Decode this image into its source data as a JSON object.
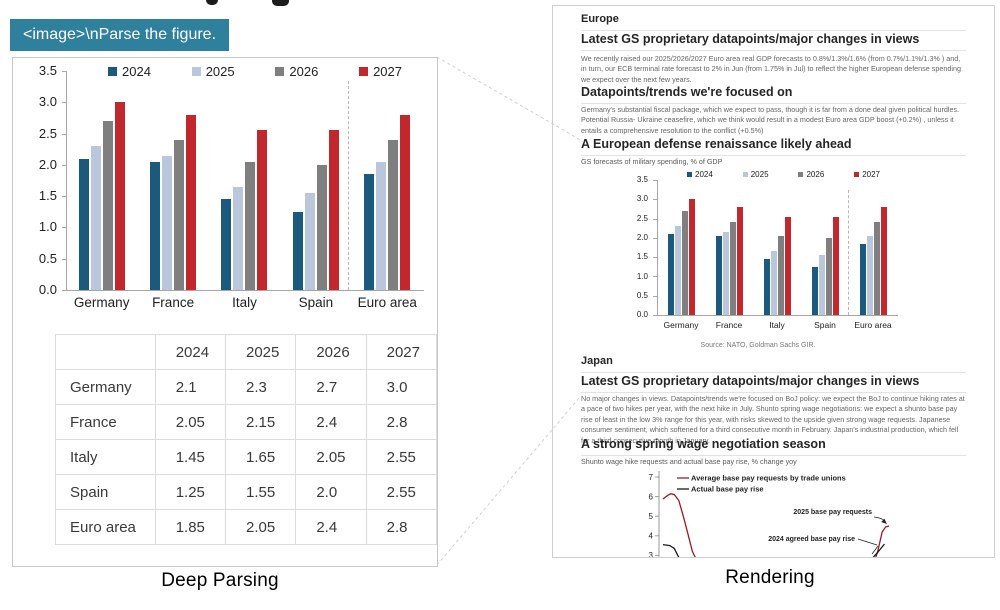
{
  "prompt_chip": {
    "text": "<image>\\nParse the figure."
  },
  "captions": {
    "left": "Deep Parsing",
    "right": "Rendering"
  },
  "table": {
    "headers": [
      "",
      "2024",
      "2025",
      "2026",
      "2027"
    ],
    "rows": [
      {
        "label": "Germany",
        "values": [
          "2.1",
          "2.3",
          "2.7",
          "3.0"
        ]
      },
      {
        "label": "France",
        "values": [
          "2.05",
          "2.15",
          "2.4",
          "2.8"
        ]
      },
      {
        "label": "Italy",
        "values": [
          "1.45",
          "1.65",
          "2.05",
          "2.55"
        ]
      },
      {
        "label": "Spain",
        "values": [
          "1.25",
          "1.55",
          "2.0",
          "2.55"
        ]
      },
      {
        "label": "Euro area",
        "values": [
          "1.85",
          "2.05",
          "2.4",
          "2.8"
        ]
      }
    ]
  },
  "panel": {
    "europe": {
      "section_title": "Europe",
      "h1": "Latest GS proprietary datapoints/major changes in views",
      "p1": "We recently raised our 2025/2026/2027 Euro area real GDP forecasts to 0.8%/1.3%/1.6% (from 0.7%/1.1%/1.3% ) and, in turn, our ECB terminal rate forecast to 2% in Jun (from 1.75% in Jul) to reflect the higher European defense spending we expect over the next few years.",
      "h2": "Datapoints/trends we're focused on",
      "p2": "Germany's substantial fiscal package, which we expect to pass, though it is far from a done deal given political hurdles. Potential Russia- Ukraine ceasefire, which we think would result in a modest Euro area GDP boost (+0.2%) , unless it entails a comprehensive resolution to the conflict (+0.5%)"
    },
    "japan": {
      "section_title": "Japan",
      "h1": "Latest GS proprietary datapoints/major changes in views",
      "p1": "No major changes in views. Datapoints/trends we're focused on BoJ policy: we expect the BoJ to continue hiking rates at a pace of two hikes per year, with the next hike in July. Shunto spring wage negotiations: we expect a shunto base pay rise of least in the low 3% range for this year, with risks skewed to the upside given strong wage requests. Japanese consumer sentiment, which softened for a third consecutive month in February. Japan's industrial production, which fell for a third consecutive month in January."
    }
  },
  "chart_data": [
    {
      "id": "gs-military-spending",
      "type": "bar",
      "title": "A European defense renaissance likely ahead",
      "subtitle": "GS forecasts of military spending, % of GDP",
      "source": "Source: NATO, Goldman Sachs GIR.",
      "categories": [
        "Germany",
        "France",
        "Italy",
        "Spain",
        "Euro area"
      ],
      "series": [
        {
          "name": "2024",
          "color": "#1b5a7d",
          "values": [
            2.1,
            2.05,
            1.45,
            1.25,
            1.85
          ]
        },
        {
          "name": "2025",
          "color": "#b9c6dc",
          "values": [
            2.3,
            2.15,
            1.65,
            1.55,
            2.05
          ]
        },
        {
          "name": "2026",
          "color": "#7f7f7f",
          "values": [
            2.7,
            2.4,
            2.05,
            2.0,
            2.4
          ]
        },
        {
          "name": "2027",
          "color": "#c1272d",
          "values": [
            3.0,
            2.8,
            2.55,
            2.55,
            2.8
          ]
        }
      ],
      "ylim": [
        0,
        3.5
      ],
      "ytick_labels": [
        "0.0",
        "0.5",
        "1.0",
        "1.5",
        "2.0",
        "2.5",
        "3.0",
        "3.5"
      ],
      "separator_before_category": "Euro area",
      "legend_position": "top",
      "grid": false
    },
    {
      "id": "shunto-wage-negotiations",
      "type": "line",
      "title": "A strong spring wage negotiation season",
      "subtitle": "Shunto wage hike requests and actual base pay rise, % change yoy",
      "ytick_labels": [
        "7",
        "6",
        "5",
        "4",
        "3"
      ],
      "ylim_visible": [
        3,
        7
      ],
      "legend_position": "top-left",
      "series": [
        {
          "name": "Average base pay requests by trade unions",
          "color": "#9b1b1e",
          "points": [
            [
              0,
              5.88
            ],
            [
              0.02,
              6.05
            ],
            [
              0.035,
              6.15
            ],
            [
              0.05,
              6.1
            ],
            [
              0.07,
              5.8
            ],
            [
              0.09,
              5.0
            ],
            [
              0.11,
              4.1
            ],
            [
              0.13,
              3.2
            ],
            [
              0.16,
              2.5
            ],
            [
              0.2,
              2.1
            ],
            [
              0.3,
              1.9
            ],
            [
              0.5,
              1.85
            ],
            [
              0.7,
              2.0
            ],
            [
              0.85,
              2.3
            ],
            [
              0.9,
              2.45
            ],
            [
              0.93,
              2.5
            ],
            [
              0.95,
              3.2
            ],
            [
              0.97,
              4.2
            ],
            [
              0.985,
              4.45
            ],
            [
              1,
              4.5
            ]
          ]
        },
        {
          "name": "Actual base pay rise",
          "color": "#1a1a1a",
          "points": [
            [
              0,
              3.55
            ],
            [
              0.03,
              3.5
            ],
            [
              0.05,
              3.35
            ],
            [
              0.07,
              2.9
            ],
            [
              0.1,
              2.4
            ],
            [
              0.15,
              2.1
            ],
            [
              0.25,
              1.9
            ],
            [
              0.45,
              1.75
            ],
            [
              0.65,
              1.85
            ],
            [
              0.8,
              2.0
            ],
            [
              0.88,
              2.2
            ],
            [
              0.93,
              2.9
            ],
            [
              0.96,
              3.3
            ],
            [
              0.98,
              3.58
            ]
          ]
        }
      ],
      "annotations": [
        {
          "text": "2025 base pay requests"
        },
        {
          "text": "2024 agreed base pay rise"
        }
      ]
    }
  ]
}
